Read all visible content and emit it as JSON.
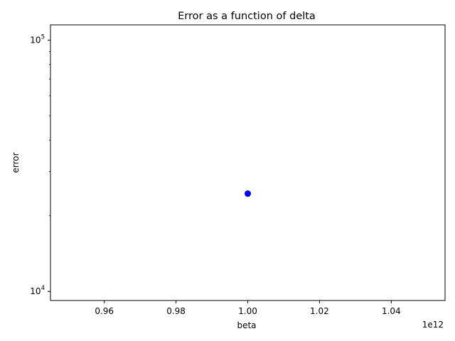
{
  "chart_data": {
    "type": "scatter",
    "title": "Error as a function of delta",
    "xlabel": "beta",
    "ylabel": "error",
    "x_offset_label": "1e12",
    "x_scale": "linear",
    "y_scale": "log",
    "xlim": [
      0.945,
      1.055
    ],
    "ylim": [
      9200,
      115000
    ],
    "x_ticks": [
      0.96,
      0.98,
      1.0,
      1.02,
      1.04
    ],
    "x_tick_labels": [
      "0.96",
      "0.98",
      "1.00",
      "1.02",
      "1.04"
    ],
    "y_major_ticks": [
      10000,
      100000
    ],
    "y_tick_labels": [
      {
        "base": "10",
        "exp": "4"
      },
      {
        "base": "10",
        "exp": "5"
      }
    ],
    "grid": false,
    "series": [
      {
        "color": "#0000ff",
        "marker": "circle",
        "x": [
          1.0
        ],
        "y": [
          24500
        ]
      }
    ]
  }
}
